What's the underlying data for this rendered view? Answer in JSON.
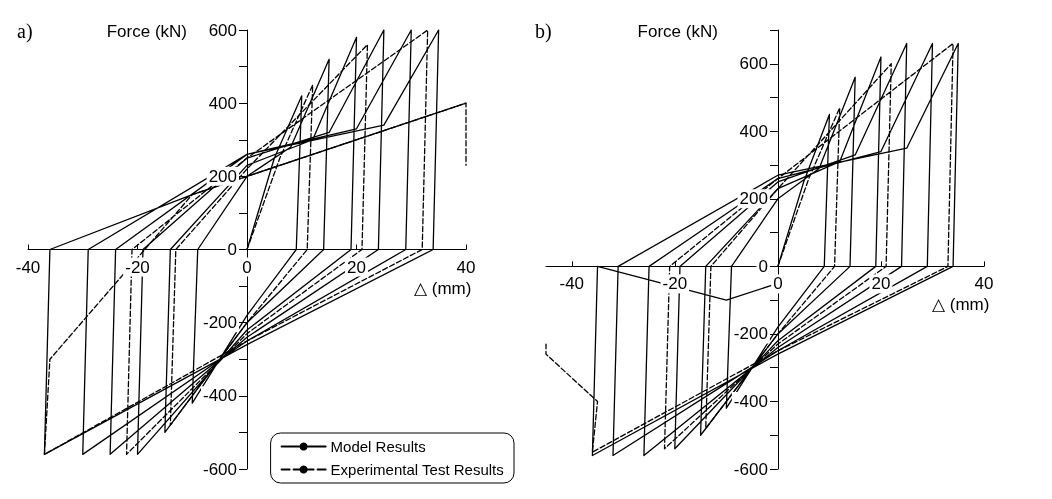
{
  "chart_data": [
    {
      "type": "line",
      "title": "a)",
      "xlabel": "△ (mm)",
      "ylabel": "Force (kN)",
      "xlim": [
        -40,
        40
      ],
      "ylim": [
        -600,
        600
      ],
      "xticks": [
        -40,
        -20,
        0,
        20,
        40
      ],
      "yticks": [
        -600,
        {
          "value": -500,
          "label": null
        },
        -400,
        {
          "value": -300,
          "label": null
        },
        -200,
        {
          "value": -100,
          "label": null
        },
        0,
        {
          "value": 100,
          "label": null
        },
        200,
        {
          "value": 300,
          "label": null
        },
        400,
        {
          "value": 500,
          "label": null
        },
        600
      ],
      "grid": false,
      "legend": "bottom right",
      "marker": "none",
      "series": [
        {
          "name": "Model Results",
          "color": "#000000",
          "line_style": "solid",
          "x": [
            0,
            5,
            10,
            9,
            0,
            -10,
            -9,
            0,
            8,
            15,
            14,
            0,
            -15,
            -14,
            0,
            12,
            20,
            19,
            0,
            -20,
            -19,
            0,
            15,
            25,
            24,
            0,
            -25,
            -24,
            0,
            20,
            30,
            29,
            0,
            -30,
            -29,
            0,
            25,
            35,
            34,
            0,
            -37,
            -36,
            -10,
            40
          ],
          "values": [
            0,
            250,
            420,
            0,
            -180,
            -420,
            0,
            200,
            280,
            520,
            0,
            -200,
            -500,
            0,
            230,
            300,
            580,
            0,
            -220,
            -560,
            0,
            250,
            320,
            600,
            0,
            -240,
            -560,
            0,
            260,
            330,
            600,
            0,
            -250,
            -560,
            0,
            260,
            340,
            600,
            0,
            -260,
            -560,
            0,
            150,
            400
          ]
        },
        {
          "name": "Experimental Test Results",
          "color": "#000000",
          "line_style": "dashed",
          "x": [
            0,
            6,
            12,
            11,
            0,
            -14,
            -13,
            0,
            22,
            21,
            0,
            -22,
            -21,
            0,
            33,
            32,
            0,
            -37,
            -36,
            -10,
            40,
            40
          ],
          "values": [
            0,
            250,
            450,
            0,
            -200,
            -480,
            0,
            220,
            560,
            0,
            -230,
            -560,
            0,
            250,
            600,
            0,
            -250,
            -560,
            -300,
            150,
            400,
            230
          ]
        }
      ]
    },
    {
      "type": "line",
      "title": "b)",
      "xlabel": "△ (mm)",
      "ylabel": "Force (kN)",
      "xlim": [
        -45,
        40
      ],
      "ylim": [
        -600,
        700
      ],
      "xticks": [
        -40,
        -20,
        0,
        20,
        40
      ],
      "yticks": [
        -600,
        {
          "value": -500,
          "label": null
        },
        -400,
        {
          "value": -300,
          "label": null
        },
        -200,
        {
          "value": -100,
          "label": null
        },
        0,
        {
          "value": 100,
          "label": null
        },
        200,
        {
          "value": 300,
          "label": null
        },
        400,
        {
          "value": 500,
          "label": null
        },
        600,
        {
          "value": 700,
          "label": null
        }
      ],
      "grid": false,
      "legend": false,
      "marker": "none",
      "series": [
        {
          "color": "#000000",
          "line_style": "solid",
          "x": [
            0,
            5,
            10,
            9,
            0,
            -10,
            -9,
            0,
            8,
            15,
            14,
            0,
            -15,
            -14,
            0,
            12,
            20,
            19,
            0,
            -20,
            -19,
            0,
            15,
            25,
            24,
            0,
            -26,
            -25,
            0,
            20,
            30,
            29,
            0,
            -32,
            -31,
            0,
            25,
            35,
            34,
            0,
            -36,
            -35,
            -10,
            0
          ],
          "values": [
            0,
            250,
            450,
            0,
            -180,
            -420,
            0,
            200,
            290,
            560,
            0,
            -200,
            -500,
            0,
            230,
            310,
            620,
            0,
            -220,
            -540,
            0,
            250,
            330,
            660,
            0,
            -240,
            -560,
            0,
            260,
            340,
            660,
            0,
            -250,
            -560,
            0,
            270,
            350,
            660,
            0,
            -260,
            -560,
            0,
            -100,
            -50
          ]
        },
        {
          "color": "#000000",
          "line_style": "dashed",
          "x": [
            0,
            6,
            12,
            11,
            0,
            -14,
            -13,
            0,
            22,
            21,
            0,
            -22,
            -21,
            0,
            34,
            33,
            0,
            -36,
            -35,
            -45,
            -45
          ],
          "values": [
            0,
            260,
            470,
            0,
            -200,
            -480,
            0,
            230,
            600,
            0,
            -230,
            -540,
            0,
            260,
            660,
            0,
            -250,
            -550,
            -400,
            -260,
            -230
          ]
        }
      ]
    }
  ]
}
